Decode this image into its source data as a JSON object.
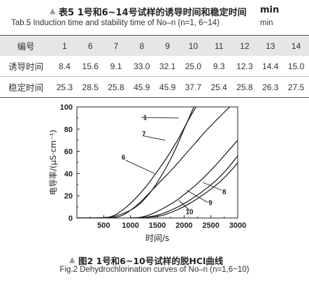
{
  "table": {
    "title_marker": "▲",
    "title_cn": "表5 1号和6~14号试样的诱导时间和稳定时间",
    "unit_cn": "min",
    "title_en": "Tab.5 Induction time and stability time of No–n (n=1, 6~14)",
    "unit_en": "min",
    "header_label": "编号",
    "samples": [
      "1",
      "6",
      "7",
      "8",
      "9",
      "10",
      "11",
      "12",
      "13",
      "14"
    ],
    "rows": [
      {
        "label": "诱导时间",
        "values": [
          "8.4",
          "15.6",
          "9.1",
          "33.0",
          "32.1",
          "25.0",
          "9.3",
          "12.3",
          "14.4",
          "15.0"
        ]
      },
      {
        "label": "稳定时间",
        "values": [
          "25.3",
          "28.5",
          "25.8",
          "45.9",
          "45.9",
          "37.7",
          "25.4",
          "25.8",
          "26.3",
          "27.5"
        ]
      }
    ]
  },
  "figure": {
    "caption_marker": "▲",
    "caption_cn": "图2 1号和6~10号试样的脱HCl曲线",
    "caption_en": "Fig.2 Dehydrochlorination curves of No–n (n=1,6~10)"
  },
  "chart_data": {
    "type": "line",
    "xlabel": "时间/s",
    "ylabel": "电导率/(μS·cm⁻¹)",
    "xlim": [
      0,
      3000
    ],
    "ylim": [
      0,
      100
    ],
    "xticks": [
      "500",
      "1000",
      "1500",
      "2000",
      "2500",
      "3000"
    ],
    "yticks": [
      "0",
      "20",
      "40",
      "60",
      "80",
      "100"
    ],
    "grid": false,
    "series": [
      {
        "name": "1",
        "x": [
          0,
          500,
          700,
          1000,
          1200,
          1400,
          1600,
          1800,
          2000,
          2200
        ],
        "y": [
          0,
          0.3,
          1.5,
          7,
          14,
          25,
          40,
          58,
          80,
          102
        ]
      },
      {
        "name": "7",
        "x": [
          0,
          500,
          700,
          900,
          1100,
          1300,
          1500,
          1700,
          1900,
          2100,
          2250
        ],
        "y": [
          0,
          0.3,
          2.5,
          9,
          18,
          29,
          42,
          56,
          72,
          90,
          102
        ]
      },
      {
        "name": "6",
        "x": [
          0,
          500,
          800,
          1000,
          1200,
          1400,
          1600,
          1800,
          2000,
          2200,
          2400,
          2600,
          2850
        ],
        "y": [
          0,
          0,
          1.5,
          7,
          15,
          25,
          35,
          45,
          56,
          67,
          78,
          88,
          100
        ]
      },
      {
        "name": "8",
        "x": [
          0,
          1000,
          1300,
          1500,
          1800,
          2000,
          2200,
          2400,
          2600,
          2800,
          3000
        ],
        "y": [
          0,
          0,
          2,
          6,
          14,
          21,
          29,
          38,
          48,
          59,
          70
        ]
      },
      {
        "name": "9",
        "x": [
          0,
          1000,
          1400,
          1600,
          1800,
          2000,
          2200,
          2400,
          2600,
          2800,
          3000
        ],
        "y": [
          0,
          0,
          1.5,
          4,
          8,
          13,
          19,
          26,
          34,
          44,
          56
        ]
      },
      {
        "name": "10",
        "x": [
          0,
          1000,
          1500,
          1700,
          1900,
          2100,
          2300,
          2500,
          2700,
          2900,
          3000
        ],
        "y": [
          0,
          0,
          1.5,
          4,
          8,
          13,
          19,
          26,
          34,
          44,
          50
        ]
      }
    ],
    "annotations": [
      {
        "text": "1",
        "x": 1270,
        "y": 91
      },
      {
        "text": "7",
        "x": 1250,
        "y": 76
      },
      {
        "text": "6",
        "x": 870,
        "y": 55
      },
      {
        "text": "8",
        "x": 2750,
        "y": 24
      },
      {
        "text": "9",
        "x": 2490,
        "y": 14
      },
      {
        "text": "10",
        "x": 2100,
        "y": 6
      }
    ]
  }
}
